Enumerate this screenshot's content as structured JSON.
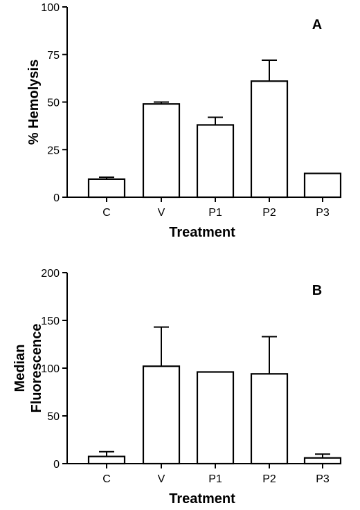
{
  "chart_data": [
    {
      "type": "bar",
      "panel_label": "A",
      "categories": [
        "C",
        "V",
        "P1",
        "P2",
        "P3"
      ],
      "values": [
        9.5,
        49,
        38,
        61,
        12.5
      ],
      "error_plus": [
        1,
        1,
        4,
        11,
        0
      ],
      "xlabel": "Treatment",
      "ylabel": [
        "% Hemolysis"
      ],
      "ylim": [
        0,
        100
      ],
      "yticks": [
        0,
        25,
        50,
        75,
        100
      ],
      "bar_color": "#ffffff",
      "grid": false
    },
    {
      "type": "bar",
      "panel_label": "B",
      "categories": [
        "C",
        "V",
        "P1",
        "P2",
        "P3"
      ],
      "values": [
        7.5,
        102,
        96,
        94,
        6
      ],
      "error_plus": [
        5,
        41,
        0,
        39,
        4
      ],
      "xlabel": "Treatment",
      "ylabel": [
        "Median",
        "Fluorescence"
      ],
      "ylim": [
        0,
        200
      ],
      "yticks": [
        0,
        50,
        100,
        150,
        200
      ],
      "bar_color": "#ffffff",
      "grid": false
    }
  ]
}
